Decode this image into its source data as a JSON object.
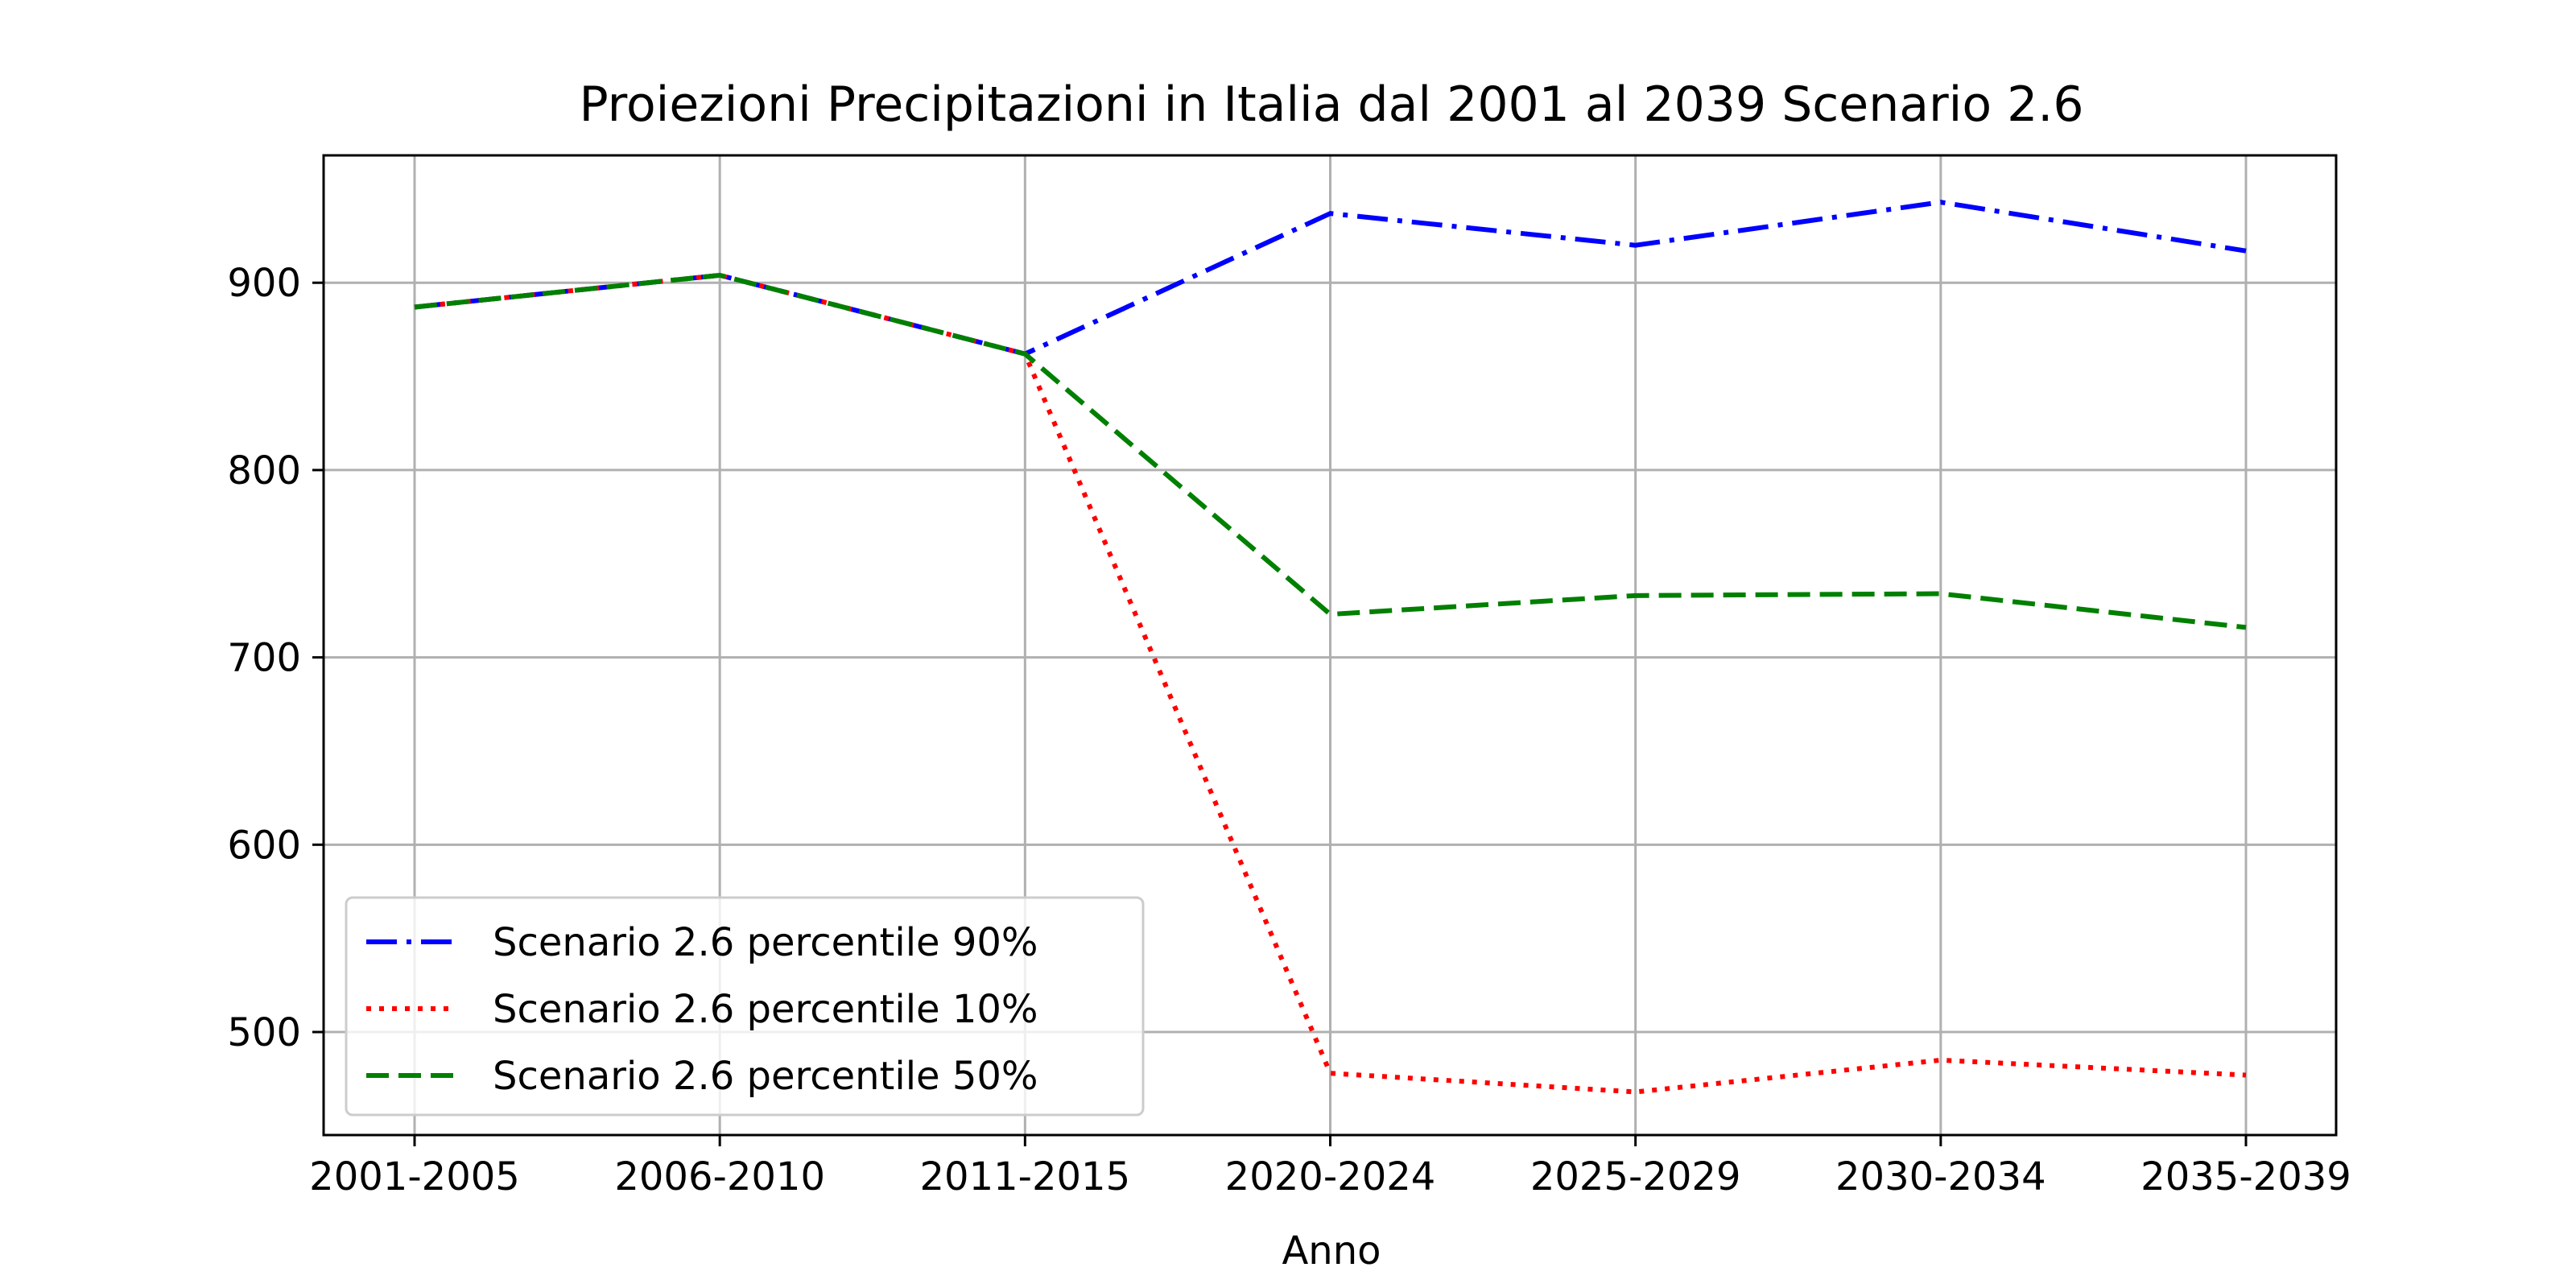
{
  "chart_data": {
    "type": "line",
    "title": "Proiezioni Precipitazioni in Italia dal 2001 al 2039 Scenario 2.6",
    "xlabel": "Anno",
    "ylabel": "",
    "categories": [
      "2001-2005",
      "2006-2010",
      "2011-2015",
      "2020-2024",
      "2025-2029",
      "2030-2034",
      "2035-2039"
    ],
    "ylim": [
      445,
      968
    ],
    "yticks": [
      500,
      600,
      700,
      800,
      900
    ],
    "grid": true,
    "legend_position": "lower-left",
    "series": [
      {
        "name": "Scenario 2.6 percentile 90%",
        "color": "#0000ff",
        "style": "dashdot",
        "values": [
          887,
          904,
          862,
          937,
          920,
          943,
          917
        ]
      },
      {
        "name": "Scenario 2.6 percentile 10%",
        "color": "#ff0000",
        "style": "dotted",
        "values": [
          887,
          904,
          862,
          478,
          468,
          485,
          477
        ]
      },
      {
        "name": "Scenario 2.6 percentile 50%",
        "color": "#008000",
        "style": "dashed",
        "values": [
          887,
          904,
          862,
          723,
          733,
          734,
          716
        ]
      }
    ]
  }
}
